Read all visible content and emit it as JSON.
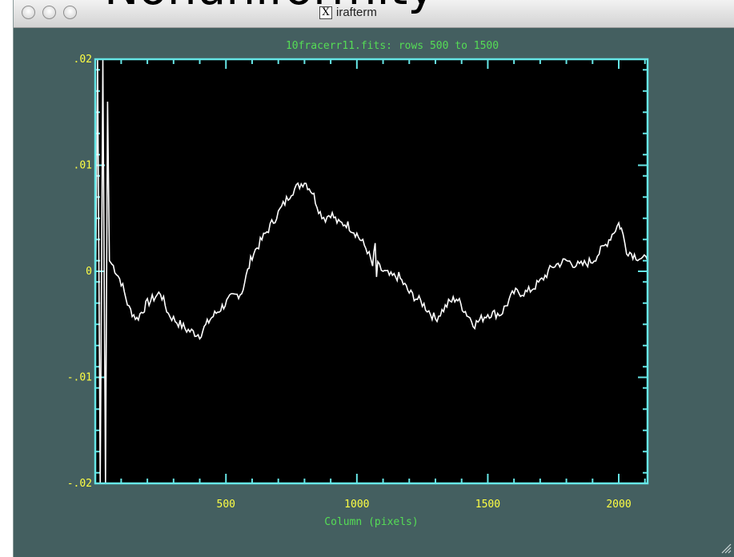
{
  "overlay": {
    "heading": "Nonuniformity"
  },
  "window": {
    "title": "irafterm",
    "title_icon": "x11-icon",
    "title_icon_glyph": "X",
    "buttons": [
      "close",
      "minimize",
      "zoom"
    ]
  },
  "colors": {
    "frame_bg": "#445f60",
    "plot_bg": "#000000",
    "axis": "#66e6e6",
    "label": "#ffff44",
    "title": "#55dd55",
    "trace": "#ffffff"
  },
  "chart_data": {
    "type": "line",
    "title": "10fracerr11.fits: rows 500 to 1500",
    "xlabel": "Column (pixels)",
    "ylabel": "",
    "xlim": [
      1,
      2110
    ],
    "ylim": [
      -0.02,
      0.02
    ],
    "xticks": [
      500,
      1000,
      1500,
      2000
    ],
    "xtick_labels": [
      "500",
      "1000",
      "1500",
      "2000"
    ],
    "yticks": [
      -0.02,
      -0.01,
      0,
      0.01,
      0.02
    ],
    "ytick_labels": [
      "-.02",
      "-.01",
      "0",
      ".01",
      ".02"
    ],
    "grid": false,
    "series": [
      {
        "values_x": [
          1,
          10,
          20,
          30,
          40,
          48,
          55,
          70,
          100,
          130,
          160,
          200,
          250,
          280,
          300,
          350,
          400,
          440,
          480,
          520,
          560,
          600,
          650,
          700,
          750,
          800,
          830,
          860,
          880,
          900,
          930,
          960,
          1000,
          1040,
          1060,
          1070,
          1075,
          1080,
          1100,
          1130,
          1160,
          1200,
          1250,
          1300,
          1350,
          1380,
          1420,
          1450,
          1500,
          1550,
          1600,
          1650,
          1700,
          1750,
          1800,
          1850,
          1900,
          1950,
          2000,
          2010,
          2030,
          2060,
          2110
        ],
        "values_y": [
          -0.005,
          0.02,
          -0.02,
          0.02,
          -0.02,
          0.016,
          0.001,
          0.0005,
          -0.001,
          -0.0035,
          -0.0045,
          -0.003,
          -0.002,
          -0.004,
          -0.0045,
          -0.0055,
          -0.006,
          -0.0045,
          -0.0035,
          -0.0025,
          -0.002,
          0.0015,
          0.0035,
          0.0055,
          0.0075,
          0.0085,
          0.0075,
          0.0055,
          0.005,
          0.0055,
          0.0045,
          0.0045,
          0.0035,
          0.002,
          0.0005,
          0.0025,
          -0.0005,
          0.0005,
          0.0,
          -0.0005,
          -0.0005,
          -0.002,
          -0.003,
          -0.0045,
          -0.003,
          -0.0025,
          -0.004,
          -0.005,
          -0.004,
          -0.004,
          -0.002,
          -0.002,
          -0.001,
          0.0005,
          0.001,
          0.0005,
          0.001,
          0.0025,
          0.0045,
          0.004,
          0.002,
          0.0015,
          0.001
        ]
      }
    ]
  }
}
